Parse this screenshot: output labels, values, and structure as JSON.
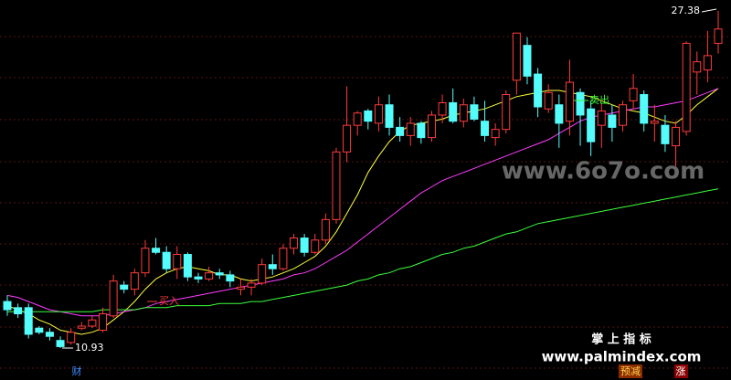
{
  "chart_data": {
    "type": "candlestick",
    "up_color": "#ff3c3c",
    "down_color": "#54fcfc",
    "open": [
      13.2,
      12.9,
      12.9,
      11.9,
      11.7,
      11.3,
      11.2,
      11.9,
      12.0,
      11.8,
      12.5,
      14.0,
      13.8,
      14.6,
      15.8,
      15.6,
      14.8,
      15.5,
      14.4,
      14.3,
      14.6,
      14.5,
      13.8,
      13.9,
      14.1,
      15.0,
      14.8,
      15.8,
      16.3,
      15.6,
      16.2,
      17.2,
      20.5,
      21.8,
      22.5,
      21.9,
      22.8,
      21.7,
      21.3,
      21.9,
      21.2,
      22.3,
      22.9,
      22.0,
      22.8,
      22.0,
      21.2,
      21.6,
      24.0,
      25.7,
      24.3,
      22.6,
      22.8,
      22.0,
      23.4,
      22.6,
      21.8,
      22.3,
      21.8,
      23.0,
      23.3,
      21.9,
      21.8,
      20.8,
      21.5,
      24.4,
      24.5,
      25.8
    ],
    "high": [
      13.5,
      13.1,
      13.1,
      12.0,
      11.9,
      11.5,
      11.9,
      12.2,
      12.5,
      12.9,
      14.5,
      14.2,
      14.8,
      16.2,
      16.3,
      15.9,
      15.9,
      15.6,
      14.6,
      14.9,
      14.8,
      14.7,
      14.3,
      14.3,
      15.3,
      15.5,
      16.0,
      16.5,
      16.5,
      16.5,
      17.5,
      20.7,
      23.7,
      22.5,
      22.6,
      23.2,
      23.3,
      22.2,
      22.2,
      22.0,
      22.5,
      23.3,
      23.6,
      23.1,
      23.2,
      23.0,
      21.9,
      23.5,
      26.3,
      26.1,
      24.6,
      23.8,
      23.3,
      25.0,
      23.6,
      23.0,
      22.9,
      22.8,
      23.0,
      24.3,
      23.5,
      22.8,
      22.3,
      22.0,
      25.9,
      25.4,
      26.4,
      27.38
    ],
    "low": [
      12.5,
      12.4,
      11.4,
      11.6,
      11.3,
      10.93,
      11.1,
      11.8,
      11.9,
      11.7,
      12.4,
      13.6,
      13.5,
      14.4,
      15.5,
      14.6,
      14.3,
      14.2,
      14.1,
      14.2,
      14.3,
      13.9,
      13.5,
      13.5,
      14.0,
      14.5,
      14.7,
      15.5,
      15.4,
      15.5,
      16.0,
      17.0,
      20.0,
      21.3,
      21.6,
      21.5,
      21.3,
      21.0,
      20.8,
      20.9,
      21.0,
      21.9,
      21.9,
      21.7,
      22.0,
      21.0,
      20.8,
      21.4,
      23.3,
      23.8,
      22.2,
      22.4,
      20.7,
      21.3,
      20.8,
      20.3,
      20.7,
      21.0,
      21.5,
      22.6,
      21.5,
      21.0,
      20.5,
      19.8,
      21.3,
      23.3,
      23.9,
      25.3
    ],
    "close": [
      12.8,
      12.6,
      11.6,
      11.7,
      11.5,
      11.0,
      11.7,
      12.0,
      12.3,
      12.6,
      14.2,
      13.8,
      14.6,
      15.8,
      15.6,
      14.8,
      15.5,
      14.4,
      14.3,
      14.6,
      14.5,
      14.2,
      13.9,
      14.1,
      15.0,
      14.8,
      15.8,
      16.3,
      15.6,
      16.2,
      17.2,
      20.5,
      21.8,
      22.4,
      22.0,
      22.8,
      21.7,
      21.3,
      21.9,
      21.2,
      22.3,
      22.9,
      22.0,
      22.8,
      22.1,
      21.3,
      21.6,
      23.3,
      26.3,
      24.2,
      22.7,
      23.4,
      21.9,
      23.9,
      22.3,
      21.0,
      22.5,
      21.7,
      22.8,
      23.6,
      21.9,
      22.0,
      20.9,
      21.7,
      25.8,
      24.9,
      25.2,
      26.5
    ],
    "series": [
      {
        "color": "#ffff3c",
        "values": [
          13.0,
          12.8,
          12.6,
          12.3,
          12.1,
          11.8,
          11.7,
          11.6,
          11.7,
          11.9,
          12.3,
          12.7,
          13.2,
          13.8,
          14.3,
          14.6,
          14.8,
          14.9,
          14.8,
          14.7,
          14.5,
          14.5,
          14.3,
          14.2,
          14.3,
          14.4,
          14.6,
          14.8,
          15.1,
          15.4,
          15.9,
          16.6,
          17.5,
          18.4,
          19.5,
          20.3,
          21.0,
          21.5,
          21.8,
          21.9,
          22.0,
          22.1,
          22.3,
          22.4,
          22.5,
          22.6,
          22.8,
          23.0,
          23.2,
          23.3,
          23.4,
          23.5,
          23.5,
          23.4,
          23.3,
          23.2,
          23.0,
          22.8,
          22.6,
          22.5,
          22.4,
          22.2,
          22.0,
          21.9,
          22.3,
          22.8,
          23.2,
          23.6
        ]
      },
      {
        "color": "#ff3cff",
        "values": [
          13.5,
          13.4,
          13.2,
          13.0,
          12.8,
          12.7,
          12.6,
          12.5,
          12.5,
          12.5,
          12.6,
          12.7,
          12.8,
          12.9,
          13.1,
          13.2,
          13.3,
          13.4,
          13.5,
          13.6,
          13.7,
          13.8,
          13.9,
          14.0,
          14.1,
          14.2,
          14.3,
          14.5,
          14.6,
          14.8,
          15.1,
          15.4,
          15.7,
          16.1,
          16.5,
          16.9,
          17.3,
          17.7,
          18.1,
          18.5,
          18.8,
          19.1,
          19.3,
          19.5,
          19.7,
          19.9,
          20.1,
          20.3,
          20.5,
          20.7,
          20.9,
          21.1,
          21.4,
          21.7,
          22.0,
          22.2,
          22.3,
          22.4,
          22.5,
          22.6,
          22.7,
          22.7,
          22.8,
          22.9,
          23.0,
          23.2,
          23.4,
          23.6
        ]
      },
      {
        "color": "#3cff3c",
        "values": [
          12.7,
          12.7,
          12.7,
          12.7,
          12.7,
          12.7,
          12.7,
          12.7,
          12.7,
          12.8,
          12.8,
          12.8,
          12.8,
          12.9,
          12.9,
          12.9,
          13.0,
          13.0,
          13.0,
          13.0,
          13.1,
          13.1,
          13.1,
          13.2,
          13.2,
          13.3,
          13.4,
          13.5,
          13.6,
          13.7,
          13.8,
          13.9,
          14.0,
          14.2,
          14.3,
          14.5,
          14.6,
          14.8,
          14.9,
          15.1,
          15.3,
          15.5,
          15.6,
          15.8,
          15.9,
          16.1,
          16.3,
          16.5,
          16.6,
          16.8,
          17.0,
          17.1,
          17.2,
          17.3,
          17.4,
          17.5,
          17.6,
          17.7,
          17.8,
          17.9,
          18.0,
          18.1,
          18.2,
          18.3,
          18.4,
          18.5,
          18.6,
          18.7
        ]
      }
    ],
    "signals": {
      "buy": "买入",
      "sell": "卖出"
    }
  },
  "overlay": {
    "watermark": "www.6o7o.com",
    "brand": "掌 上 指 标",
    "site": "www.palmindex.com",
    "bottom_left": "财",
    "tag1": "预减",
    "tag2": "涨"
  }
}
